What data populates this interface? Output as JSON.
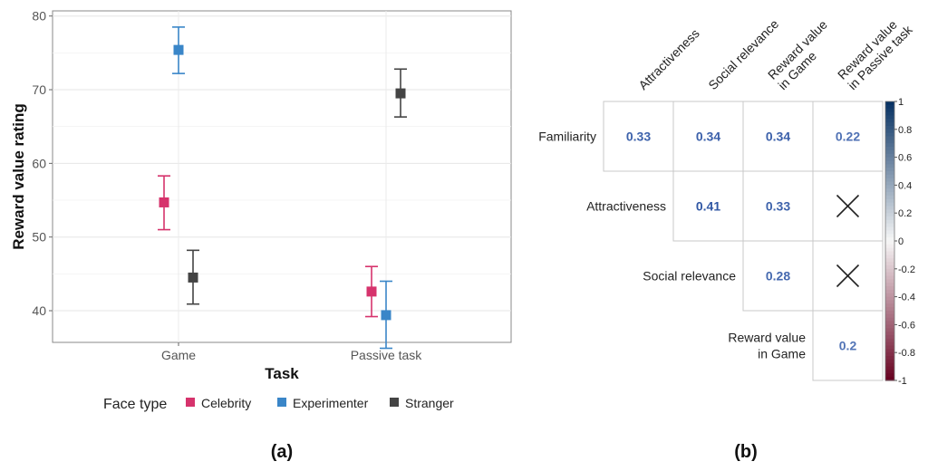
{
  "panels": {
    "a_label": "(a)",
    "b_label": "(b)"
  },
  "chart_data": [
    {
      "type": "scatter",
      "ylabel": "Reward value rating",
      "xlabel": "Task",
      "categories": [
        "Game",
        "Passive task"
      ],
      "ylim": [
        35.7,
        80.7
      ],
      "yticks": [
        40,
        50,
        60,
        70,
        80
      ],
      "grid": true,
      "legend": {
        "title": "Face type",
        "placement": "bottom"
      },
      "series": [
        {
          "name": "Celebrity",
          "color": "#d6336c",
          "values": [
            54.7,
            42.6
          ],
          "lower": [
            51.0,
            39.2
          ],
          "upper": [
            58.3,
            46.0
          ]
        },
        {
          "name": "Experimenter",
          "color": "#3a86c8",
          "values": [
            75.4,
            39.4
          ],
          "lower": [
            72.2,
            34.9
          ],
          "upper": [
            78.5,
            44.0
          ]
        },
        {
          "name": "Stranger",
          "color": "#444444",
          "values": [
            44.5,
            69.5
          ],
          "lower": [
            40.9,
            66.3
          ],
          "upper": [
            48.2,
            72.8
          ]
        }
      ]
    },
    {
      "type": "heatmap",
      "columns": [
        "Attractiveness",
        "Social relevance",
        "Reward value\nin Game",
        "Reward value\nin Passive task"
      ],
      "rows": [
        "Familiarity",
        "Attractiveness",
        "Social relevance",
        "Reward value\nin Game"
      ],
      "cells": [
        [
          0.33,
          0.34,
          0.34,
          0.22
        ],
        [
          null,
          0.41,
          0.33,
          "x"
        ],
        [
          null,
          null,
          0.28,
          "x"
        ],
        [
          null,
          null,
          null,
          0.2
        ]
      ],
      "cell_labels": [
        [
          "0.33",
          "0.34",
          "0.34",
          "0.22"
        ],
        [
          "",
          "0.41",
          "0.33",
          ""
        ],
        [
          "",
          "",
          "0.28",
          ""
        ],
        [
          "",
          "",
          "",
          "0.2"
        ]
      ],
      "colorbar": {
        "range": [
          -1,
          1
        ],
        "ticks": [
          "1",
          "0.8",
          "0.6",
          "0.4",
          "0.2",
          "0",
          "-0.2",
          "-0.4",
          "-0.6",
          "-0.8",
          "-1"
        ],
        "high_color": "#053061",
        "mid_color": "#f7f7f7",
        "low_color": "#67001f"
      }
    }
  ]
}
